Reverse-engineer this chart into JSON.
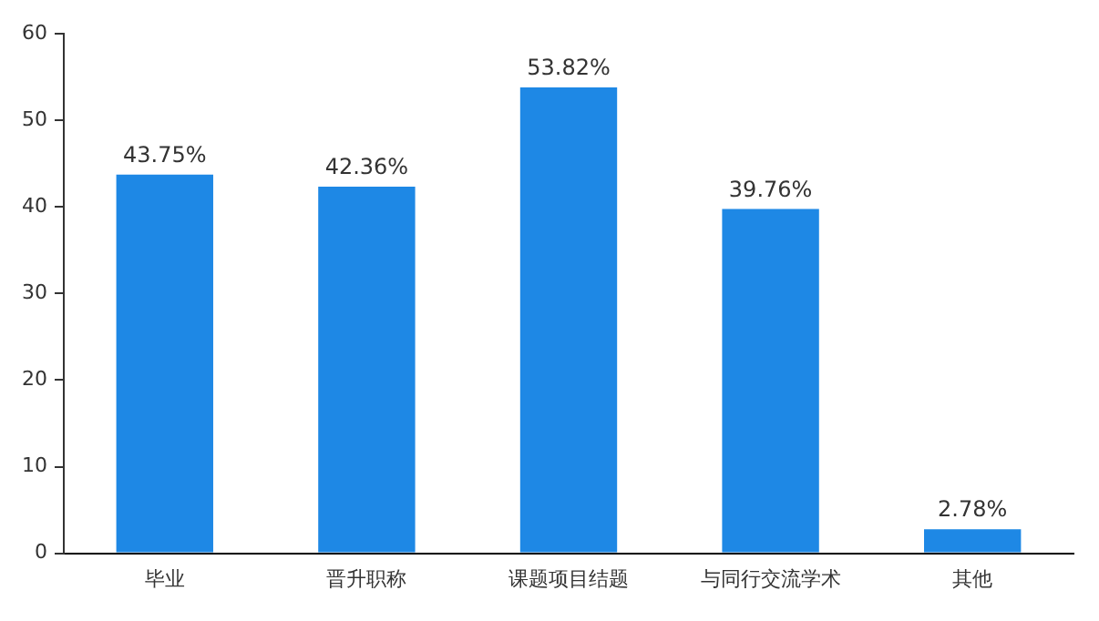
{
  "chart_data": {
    "type": "bar",
    "categories": [
      "毕业",
      "晋升职称",
      "课题项目结题",
      "与同行交流学术",
      "其他"
    ],
    "values": [
      43.75,
      42.36,
      53.82,
      39.76,
      2.78
    ],
    "value_labels": [
      "43.75%",
      "42.36%",
      "53.82%",
      "39.76%",
      "2.78%"
    ],
    "color": "#1e88e5",
    "ylim": [
      0,
      60
    ],
    "yticks": [
      0,
      10,
      20,
      30,
      40,
      50,
      60
    ],
    "grid": false,
    "legend": false
  }
}
